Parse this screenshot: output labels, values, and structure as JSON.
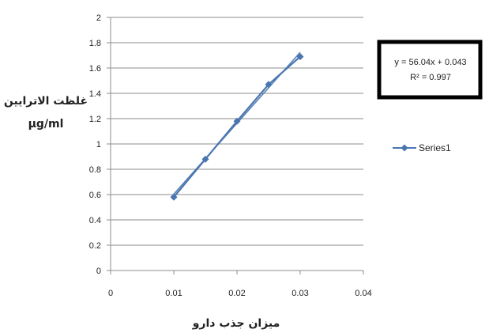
{
  "chart_data": {
    "type": "scatter",
    "x": [
      0.01,
      0.015,
      0.02,
      0.025,
      0.03
    ],
    "series": [
      {
        "name": "Series1",
        "values": [
          0.58,
          0.88,
          1.18,
          1.47,
          1.69
        ],
        "color": "#4a76b0",
        "marker": "diamond"
      }
    ],
    "trendline": {
      "type": "linear",
      "equation": "y = 56.04x + 0.043",
      "r_squared": "R² = 0.997",
      "color": "#4a76b0"
    },
    "title": "",
    "xlabel": "میزان جذب دارو",
    "ylabel_line1": "غلظت الاترایین",
    "ylabel_line2": "µg/ml",
    "xlim": [
      0,
      0.04
    ],
    "ylim": [
      0,
      2
    ],
    "xticks": [
      "0",
      "0.01",
      "0.02",
      "0.03",
      "0.04"
    ],
    "yticks": [
      "0",
      "0.2",
      "0.4",
      "0.6",
      "0.8",
      "1",
      "1.2",
      "1.4",
      "1.6",
      "1.8",
      "2"
    ],
    "grid": "horizontal",
    "legend": "right"
  }
}
